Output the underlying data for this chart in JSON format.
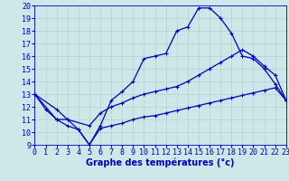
{
  "background_color": "#cce8e8",
  "grid_color": "#aacccc",
  "line_color": "#0000bb",
  "xlabel": "Graphe des températures (°c)",
  "xlabel_fontsize": 7,
  "tick_fontsize": 6,
  "xlim": [
    0,
    23
  ],
  "ylim": [
    9,
    20
  ],
  "yticks": [
    9,
    10,
    11,
    12,
    13,
    14,
    15,
    16,
    17,
    18,
    19,
    20
  ],
  "xticks": [
    0,
    1,
    2,
    3,
    4,
    5,
    6,
    7,
    8,
    9,
    10,
    11,
    12,
    13,
    14,
    15,
    16,
    17,
    18,
    19,
    20,
    21,
    22,
    23
  ],
  "series": [
    {
      "x": [
        0,
        1,
        2,
        3,
        4,
        5,
        6,
        7,
        8,
        9,
        10,
        11,
        12,
        13,
        14,
        15,
        16,
        17,
        18,
        19,
        20,
        21,
        22,
        23
      ],
      "y": [
        13,
        11.8,
        11,
        10.5,
        10.2,
        9.0,
        10.5,
        12.5,
        13.2,
        14.0,
        15.8,
        16.0,
        16.2,
        18.0,
        18.3,
        19.8,
        19.8,
        19.0,
        17.8,
        16.0,
        15.8,
        15.0,
        13.8,
        12.5
      ]
    },
    {
      "x": [
        0,
        2,
        3,
        5,
        6,
        7,
        8,
        9,
        10,
        11,
        12,
        13,
        14,
        15,
        16,
        17,
        18,
        19,
        20,
        21,
        22,
        23
      ],
      "y": [
        13,
        11,
        11,
        10.5,
        11.5,
        12.0,
        12.3,
        12.7,
        13.0,
        13.2,
        13.4,
        13.6,
        14.0,
        14.5,
        15.0,
        15.5,
        16.0,
        16.5,
        16.0,
        15.2,
        14.5,
        12.5
      ]
    },
    {
      "x": [
        0,
        2,
        3,
        4,
        5,
        6,
        7,
        8,
        9,
        10,
        11,
        12,
        13,
        14,
        15,
        16,
        17,
        18,
        19,
        20,
        21,
        22,
        23
      ],
      "y": [
        13,
        11.8,
        11,
        10.2,
        9.0,
        10.3,
        10.5,
        10.7,
        11.0,
        11.2,
        11.3,
        11.5,
        11.7,
        11.9,
        12.1,
        12.3,
        12.5,
        12.7,
        12.9,
        13.1,
        13.3,
        13.5,
        12.5
      ]
    }
  ]
}
